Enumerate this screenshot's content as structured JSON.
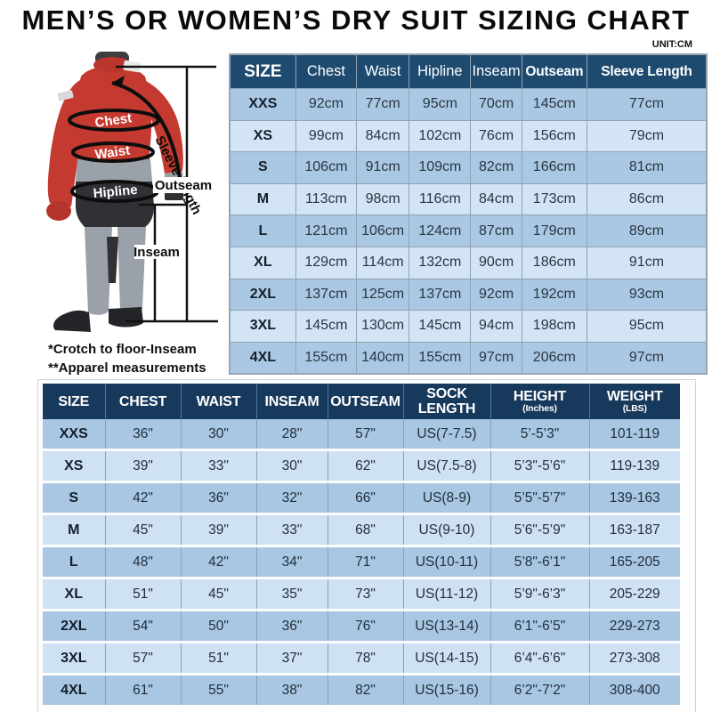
{
  "title": "MEN’S OR WOMEN’S DRY SUIT SIZING CHART",
  "unit_note": "UNIT:CM",
  "diagram": {
    "labels": {
      "chest": "Chest",
      "waist": "Waist",
      "hipline": "Hipline",
      "sleeve_length": "Sleeve length",
      "outseam": "Outseam",
      "inseam": "Inseam"
    },
    "footnotes": [
      "*Crotch to floor-Inseam",
      "**Apparel measurements"
    ]
  },
  "cm_table": {
    "headers": [
      "SIZE",
      "Chest",
      "Waist",
      "Hipline",
      "Inseam",
      "Outseam",
      "Sleeve Length"
    ],
    "rows": [
      [
        "XXS",
        "92cm",
        "77cm",
        "95cm",
        "70cm",
        "145cm",
        "77cm"
      ],
      [
        "XS",
        "99cm",
        "84cm",
        "102cm",
        "76cm",
        "156cm",
        "79cm"
      ],
      [
        "S",
        "106cm",
        "91cm",
        "109cm",
        "82cm",
        "166cm",
        "81cm"
      ],
      [
        "M",
        "113cm",
        "98cm",
        "116cm",
        "84cm",
        "173cm",
        "86cm"
      ],
      [
        "L",
        "121cm",
        "106cm",
        "124cm",
        "87cm",
        "179cm",
        "89cm"
      ],
      [
        "XL",
        "129cm",
        "114cm",
        "132cm",
        "90cm",
        "186cm",
        "91cm"
      ],
      [
        "2XL",
        "137cm",
        "125cm",
        "137cm",
        "92cm",
        "192cm",
        "93cm"
      ],
      [
        "3XL",
        "145cm",
        "130cm",
        "145cm",
        "94cm",
        "198cm",
        "95cm"
      ],
      [
        "4XL",
        "155cm",
        "140cm",
        "155cm",
        "97cm",
        "206cm",
        "97cm"
      ]
    ]
  },
  "inch_table": {
    "headers": [
      {
        "label": "SIZE",
        "sub": ""
      },
      {
        "label": "CHEST",
        "sub": ""
      },
      {
        "label": "WAIST",
        "sub": ""
      },
      {
        "label": "INSEAM",
        "sub": ""
      },
      {
        "label": "OUTSEAM",
        "sub": ""
      },
      {
        "label": "SOCK LENGTH",
        "sub": ""
      },
      {
        "label": "HEIGHT",
        "sub": "(Inches)"
      },
      {
        "label": "WEIGHT",
        "sub": "(LBS)"
      }
    ],
    "rows": [
      [
        "XXS",
        "36\"",
        "30\"",
        "28\"",
        "57\"",
        "US(7-7.5)",
        "5’-5’3\"",
        "101-119"
      ],
      [
        "XS",
        "39\"",
        "33\"",
        "30\"",
        "62\"",
        "US(7.5-8)",
        "5’3\"-5’6\"",
        "119-139"
      ],
      [
        "S",
        "42\"",
        "36\"",
        "32\"",
        "66\"",
        "US(8-9)",
        "5’5\"-5’7\"",
        "139-163"
      ],
      [
        "M",
        "45\"",
        "39\"",
        "33\"",
        "68\"",
        "US(9-10)",
        "5’6\"-5’9\"",
        "163-187"
      ],
      [
        "L",
        "48\"",
        "42\"",
        "34\"",
        "71\"",
        "US(10-11)",
        "5’8\"-6’1\"",
        "165-205"
      ],
      [
        "XL",
        "51\"",
        "45\"",
        "35\"",
        "73\"",
        "US(11-12)",
        "5’9\"-6’3\"",
        "205-229"
      ],
      [
        "2XL",
        "54\"",
        "50\"",
        "36\"",
        "76\"",
        "US(13-14)",
        "6’1\"-6’5\"",
        "229-273"
      ],
      [
        "3XL",
        "57\"",
        "51\"",
        "37\"",
        "78\"",
        "US(14-15)",
        "6’4\"-6’6\"",
        "273-308"
      ],
      [
        "4XL",
        "61\"",
        "55\"",
        "38\"",
        "82\"",
        "US(15-16)",
        "6’2\"-7’2\"",
        "308-400"
      ]
    ]
  },
  "colors": {
    "header_navy_top": "#1e4a70",
    "header_navy_bottom": "#17395c",
    "row_medium_blue": "#aac8e3",
    "row_light_blue": "#d2e4f5",
    "suit_red": "#c43a30",
    "suit_gray": "#9aa1a9",
    "suit_charcoal": "#2f3135",
    "measure_line_black": "#0d0d0d"
  }
}
